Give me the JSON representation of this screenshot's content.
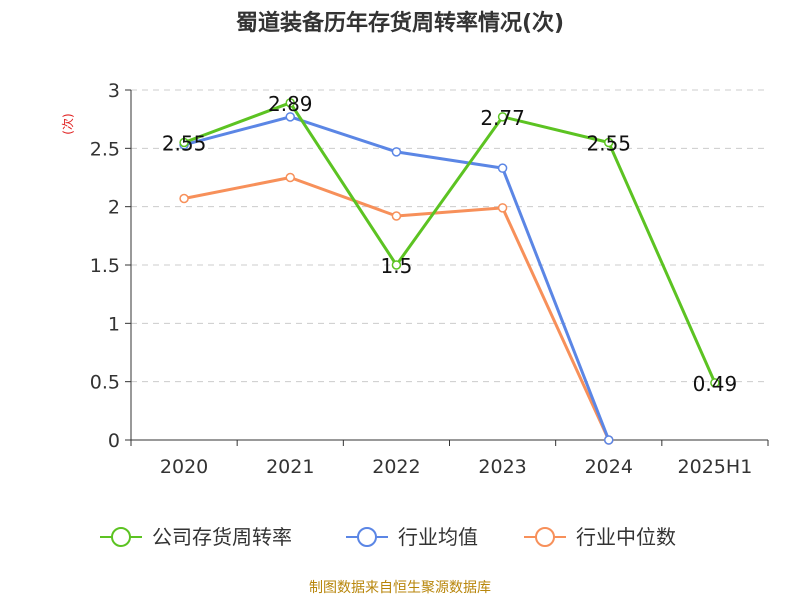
{
  "chart_data": {
    "type": "line",
    "title": "蜀道装备历年存货周转率情况(次)",
    "ylabel": "(次)",
    "xlabel": "",
    "categories": [
      "2020",
      "2021",
      "2022",
      "2023",
      "2024",
      "2025H1"
    ],
    "ylim": [
      0,
      3
    ],
    "yticks": [
      "0",
      "0.5",
      "1",
      "1.5",
      "2",
      "2.5",
      "3"
    ],
    "grid": true,
    "legend_position": "bottom",
    "series": [
      {
        "name": "公司存货周转率",
        "color": "#5cc322",
        "values": [
          2.55,
          2.89,
          1.5,
          2.77,
          2.55,
          0.49
        ],
        "labels": [
          "2.55",
          "2.89",
          "1.5",
          "2.77",
          "2.55",
          "0.49"
        ]
      },
      {
        "name": "行业均值",
        "color": "#5b86e5",
        "values": [
          2.53,
          2.77,
          2.47,
          2.33,
          0,
          null
        ]
      },
      {
        "name": "行业中位数",
        "color": "#f7905a",
        "values": [
          2.07,
          2.25,
          1.92,
          1.99,
          0,
          null
        ]
      }
    ]
  },
  "source": "制图数据来自恒生聚源数据库"
}
